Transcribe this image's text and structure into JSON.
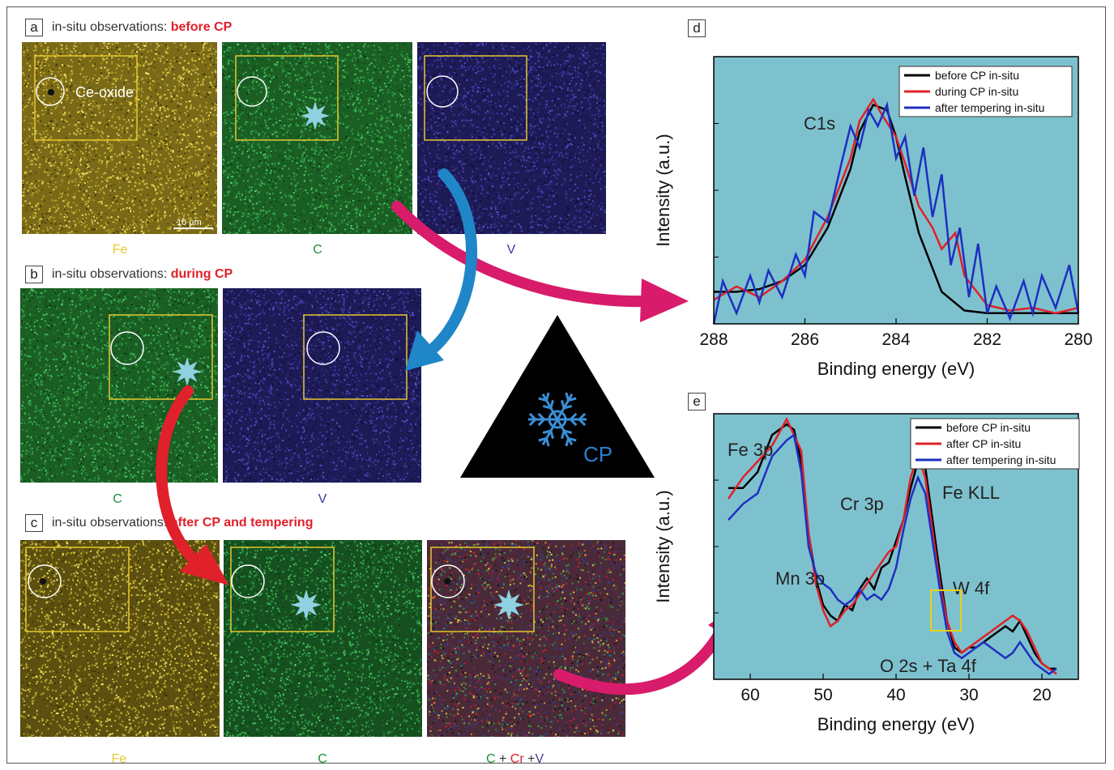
{
  "panel_a": {
    "letter": "a",
    "title": "in-situ observations: ",
    "title_hl": "before CP",
    "annotation": "Ce-oxide",
    "scalebar": "10 µm",
    "labels": [
      "Fe",
      "C",
      "V"
    ],
    "colors": [
      "#e6c82e",
      "#1f8f3a",
      "#3b3b9e"
    ]
  },
  "panel_b": {
    "letter": "b",
    "title": "in-situ observations: ",
    "title_hl": "during CP",
    "labels": [
      "C",
      "V"
    ]
  },
  "panel_c": {
    "letter": "c",
    "title": "in-situ observations: ",
    "title_hl": "after CP and tempering",
    "labels": [
      "Fe",
      "C"
    ],
    "label3": {
      "c": "C",
      "plus1": " + ",
      "cr": "Cr",
      "plus2": " +",
      "v": "V"
    }
  },
  "cp_badge": {
    "text": "CP"
  },
  "colors": {
    "fe": "#e6c82e",
    "c": "#1f8f3a",
    "v": "#3b3b9e",
    "cr": "#e0202a",
    "highlight": "#e0202a",
    "plot_bg": "#7ec1ce",
    "arrow_pink": "#d81b6b",
    "arrow_blue": "#1f86c8",
    "arrow_red": "#e0202a",
    "star": "#8fd1e0"
  },
  "chart_data": [
    {
      "panel": "d",
      "type": "line",
      "xlabel": "Binding energy (eV)",
      "ylabel": "Intensity (a.u.)",
      "xlim": [
        288,
        280
      ],
      "x_reversed": true,
      "xticks": [
        288,
        286,
        284,
        282,
        280
      ],
      "annotations": [
        {
          "text": "C1s"
        }
      ],
      "series": [
        {
          "name": "before CP in-situ",
          "color": "#000000",
          "x": [
            288,
            287.5,
            287,
            286.5,
            286,
            285.5,
            285,
            284.8,
            284.5,
            284.2,
            284,
            283.8,
            283.5,
            283,
            282.5,
            282,
            281.5,
            281,
            280.5,
            280
          ],
          "y": [
            0.12,
            0.12,
            0.13,
            0.16,
            0.22,
            0.36,
            0.58,
            0.72,
            0.82,
            0.8,
            0.7,
            0.55,
            0.34,
            0.12,
            0.05,
            0.04,
            0.04,
            0.04,
            0.04,
            0.04
          ]
        },
        {
          "name": "during CP in-situ",
          "color": "#e0202a",
          "x": [
            288,
            287.5,
            287,
            286.5,
            286,
            285.5,
            285,
            284.8,
            284.5,
            284.3,
            284,
            283.8,
            283.5,
            283.2,
            283,
            282.7,
            282.5,
            282,
            281.5,
            281,
            280.5,
            280
          ],
          "y": [
            0.09,
            0.14,
            0.1,
            0.16,
            0.24,
            0.4,
            0.62,
            0.76,
            0.84,
            0.78,
            0.7,
            0.6,
            0.44,
            0.36,
            0.28,
            0.34,
            0.18,
            0.07,
            0.05,
            0.06,
            0.04,
            0.06
          ]
        },
        {
          "name": "after tempering in-situ",
          "color": "#1d2fc2",
          "x": [
            288,
            287.8,
            287.5,
            287.2,
            287,
            286.8,
            286.5,
            286.2,
            286,
            285.8,
            285.5,
            285.2,
            285,
            284.8,
            284.6,
            284.4,
            284.2,
            284,
            283.8,
            283.6,
            283.4,
            283.2,
            283,
            282.8,
            282.6,
            282.4,
            282.2,
            282,
            281.8,
            281.5,
            281.2,
            281,
            280.8,
            280.5,
            280.2,
            280
          ],
          "y": [
            0.0,
            0.16,
            0.04,
            0.18,
            0.08,
            0.2,
            0.1,
            0.26,
            0.18,
            0.42,
            0.38,
            0.6,
            0.74,
            0.66,
            0.8,
            0.74,
            0.82,
            0.62,
            0.7,
            0.48,
            0.66,
            0.4,
            0.56,
            0.22,
            0.36,
            0.1,
            0.3,
            0.04,
            0.14,
            0.02,
            0.16,
            0.04,
            0.18,
            0.06,
            0.22,
            0.04
          ]
        }
      ]
    },
    {
      "panel": "e",
      "type": "line",
      "xlabel": "Binding energy (eV)",
      "ylabel": "Intensity (a.u.)",
      "xlim": [
        65,
        15
      ],
      "x_reversed": true,
      "xticks": [
        60,
        50,
        40,
        30,
        20
      ],
      "annotations": [
        {
          "text": "Fe 3p"
        },
        {
          "text": "Cr 3p"
        },
        {
          "text": "Fe KLL"
        },
        {
          "text": "Mn 3p"
        },
        {
          "text": "W 4f"
        },
        {
          "text": "O 2s + Ta 4f"
        }
      ],
      "series": [
        {
          "name": "before CP in-situ",
          "color": "#000000",
          "x": [
            63,
            61,
            59,
            57,
            55,
            54,
            53,
            52,
            51,
            50,
            49,
            48,
            47,
            46,
            45,
            44,
            43,
            42,
            41,
            40,
            39,
            38,
            37,
            36,
            35,
            34,
            33,
            32,
            31,
            30,
            29,
            28,
            27,
            26,
            25,
            24,
            23,
            22,
            21,
            20,
            19,
            18
          ],
          "y": [
            0.72,
            0.72,
            0.78,
            0.92,
            0.96,
            0.94,
            0.82,
            0.55,
            0.38,
            0.28,
            0.24,
            0.22,
            0.28,
            0.26,
            0.34,
            0.38,
            0.34,
            0.42,
            0.44,
            0.52,
            0.6,
            0.72,
            0.82,
            0.8,
            0.6,
            0.4,
            0.22,
            0.12,
            0.1,
            0.12,
            0.12,
            0.14,
            0.16,
            0.18,
            0.2,
            0.18,
            0.22,
            0.16,
            0.1,
            0.06,
            0.04,
            0.04
          ]
        },
        {
          "name": "after CP in-situ",
          "color": "#e0202a",
          "x": [
            63,
            61,
            59,
            57,
            55,
            54,
            53,
            52,
            51,
            50,
            49,
            48,
            47,
            46,
            45,
            44,
            43,
            42,
            41,
            40,
            39,
            38,
            37,
            36,
            35,
            34,
            33,
            32,
            31,
            30,
            29,
            28,
            27,
            26,
            25,
            24,
            23,
            22,
            21,
            20,
            19,
            18
          ],
          "y": [
            0.68,
            0.76,
            0.82,
            0.88,
            0.98,
            0.92,
            0.86,
            0.55,
            0.36,
            0.26,
            0.2,
            0.22,
            0.26,
            0.28,
            0.32,
            0.36,
            0.4,
            0.44,
            0.48,
            0.5,
            0.6,
            0.76,
            0.84,
            0.76,
            0.56,
            0.36,
            0.22,
            0.14,
            0.1,
            0.12,
            0.14,
            0.16,
            0.18,
            0.2,
            0.22,
            0.24,
            0.22,
            0.18,
            0.12,
            0.06,
            0.04,
            0.02
          ]
        },
        {
          "name": "after tempering in-situ",
          "color": "#1d2fc2",
          "x": [
            63,
            61,
            59,
            57,
            55,
            54,
            53,
            52,
            51,
            50,
            49,
            48,
            47,
            46,
            45,
            44,
            43,
            42,
            41,
            40,
            39,
            38,
            37,
            36,
            35,
            34,
            33,
            32,
            31,
            30,
            29,
            28,
            27,
            26,
            25,
            24,
            23,
            22,
            21,
            20,
            19,
            18
          ],
          "y": [
            0.6,
            0.66,
            0.7,
            0.84,
            0.9,
            0.92,
            0.78,
            0.5,
            0.4,
            0.36,
            0.34,
            0.3,
            0.28,
            0.3,
            0.34,
            0.3,
            0.32,
            0.3,
            0.34,
            0.42,
            0.56,
            0.68,
            0.76,
            0.7,
            0.52,
            0.34,
            0.18,
            0.1,
            0.08,
            0.1,
            0.12,
            0.14,
            0.12,
            0.1,
            0.08,
            0.1,
            0.14,
            0.1,
            0.06,
            0.04,
            0.02,
            0.04
          ]
        }
      ]
    }
  ]
}
